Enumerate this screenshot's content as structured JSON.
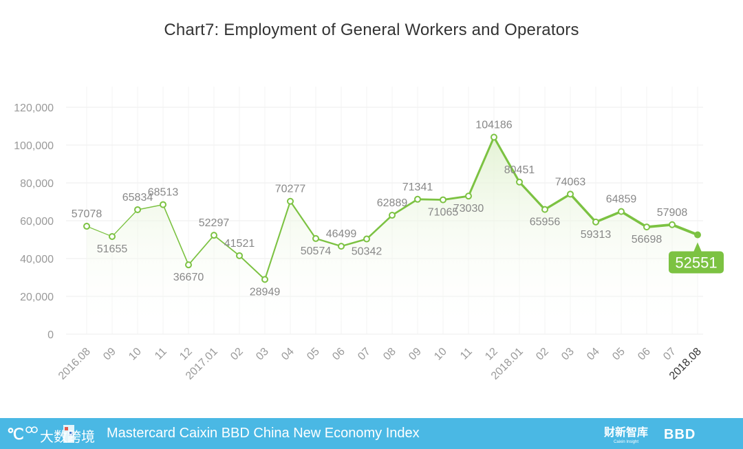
{
  "chart_data": {
    "type": "line",
    "title": "Chart7: Employment of General Workers and Operators",
    "categories": [
      "2016.08",
      "09",
      "10",
      "11",
      "12",
      "2017.01",
      "02",
      "03",
      "04",
      "05",
      "06",
      "07",
      "08",
      "09",
      "10",
      "11",
      "12",
      "2018.01",
      "02",
      "03",
      "04",
      "05",
      "06",
      "07",
      "2018.08"
    ],
    "values": [
      57078,
      51655,
      65834,
      68513,
      36670,
      52297,
      41521,
      28949,
      70277,
      50574,
      46499,
      50342,
      62889,
      71341,
      71065,
      73030,
      104186,
      80451,
      65956,
      74063,
      59313,
      64859,
      56698,
      57908,
      52551
    ],
    "ylim": [
      0,
      120000
    ],
    "yticks": [
      "0",
      "20,000",
      "40,000",
      "60,000",
      "80,000",
      "100,000",
      "120,000"
    ],
    "ytick_values": [
      0,
      20000,
      40000,
      60000,
      80000,
      100000,
      120000
    ],
    "label_positions": [
      "above",
      "below",
      "above",
      "above",
      "below",
      "above",
      "above",
      "below",
      "above",
      "below",
      "above",
      "below",
      "above",
      "above",
      "below",
      "below",
      "above",
      "above",
      "below",
      "above",
      "below",
      "above",
      "below",
      "above",
      "callout"
    ],
    "highlight_last": "52551",
    "grid": true,
    "colors": {
      "line": "#7cc242",
      "area": "#eef7e4",
      "grid": "#ececec",
      "tick": "#999999",
      "label": "#888888",
      "callout": "#7cc242"
    }
  },
  "footer": {
    "text": "Mastercard Caixin BBD China New Economy Index",
    "logo_left": "大数跨境",
    "logo_right": "财新智库",
    "logo_right_sub": "Caixin Insight",
    "logo_bbd": "BBD",
    "background": "#4ab8e4"
  }
}
